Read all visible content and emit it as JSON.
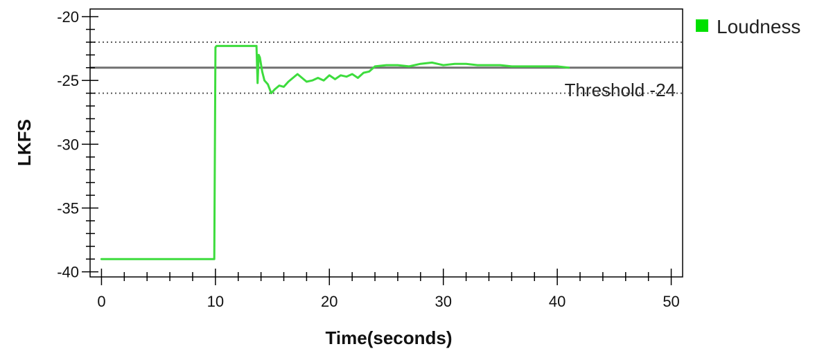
{
  "chart_data": {
    "type": "line",
    "xlabel": "Time(seconds)",
    "ylabel": "LKFS",
    "xlim": [
      -1,
      51
    ],
    "ylim": [
      -40.4,
      -19.4
    ],
    "xticks": [
      0,
      10,
      20,
      30,
      40,
      50
    ],
    "xtick_labels": [
      "0",
      "10",
      "20",
      "30",
      "40",
      "50"
    ],
    "yticks": [
      -40,
      -35,
      -30,
      -25,
      -20
    ],
    "ytick_labels": [
      "-40",
      "-35",
      "-30",
      "-25",
      "-20"
    ],
    "x_minor_step": 2,
    "y_minor_step": 1,
    "grid": false,
    "legend_position": "top-right outside",
    "series": [
      {
        "name": "Loudness",
        "color": "#3ddc3d",
        "x": [
          0,
          9.9,
          10.0,
          10.1,
          13.6,
          13.7,
          13.8,
          13.9,
          14.1,
          14.3,
          14.6,
          14.9,
          15.2,
          15.6,
          16.0,
          16.4,
          16.8,
          17.2,
          17.6,
          18.0,
          18.5,
          19.0,
          19.5,
          20.0,
          20.5,
          21.0,
          21.5,
          22.0,
          22.5,
          23.0,
          23.5,
          24.0,
          25.0,
          26.0,
          27.0,
          28.0,
          29.0,
          30.0,
          31.0,
          32.0,
          33.0,
          34.0,
          35.0,
          36.0,
          37.0,
          38.0,
          39.0,
          40.0,
          41.0
        ],
        "y": [
          -39,
          -39,
          -22.4,
          -22.3,
          -22.3,
          -25.2,
          -23.0,
          -23.2,
          -24.3,
          -25.0,
          -25.3,
          -26.0,
          -25.7,
          -25.4,
          -25.5,
          -25.1,
          -24.8,
          -24.5,
          -24.8,
          -25.1,
          -25.0,
          -24.8,
          -25.0,
          -24.6,
          -24.9,
          -24.6,
          -24.7,
          -24.5,
          -24.8,
          -24.4,
          -24.3,
          -23.9,
          -23.8,
          -23.8,
          -23.9,
          -23.7,
          -23.6,
          -23.8,
          -23.7,
          -23.7,
          -23.8,
          -23.8,
          -23.8,
          -23.9,
          -23.9,
          -23.9,
          -23.9,
          -23.9,
          -24.0
        ]
      }
    ],
    "reference_lines": [
      {
        "y": -22,
        "style": "dotted",
        "color": "#555555"
      },
      {
        "y": -24,
        "style": "solid",
        "color": "#707070",
        "label": "Threshold -24"
      },
      {
        "y": -26,
        "style": "dotted",
        "color": "#555555"
      }
    ]
  }
}
